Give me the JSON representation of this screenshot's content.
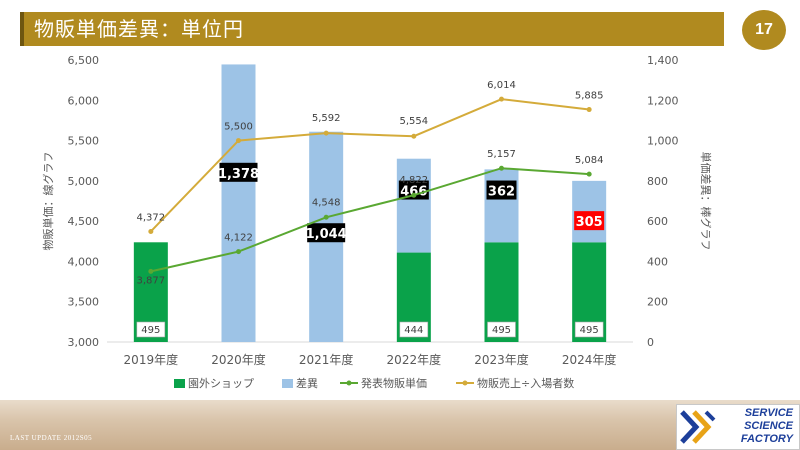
{
  "header": {
    "title": "物販単価差異：単位円",
    "page_number": "17"
  },
  "footer": {
    "update_text": "LAST UPDATE 2012S05",
    "logo_lines": [
      "SERVICE",
      "SCIENCE",
      "FACTORY"
    ]
  },
  "colors": {
    "title_bar": "#b08a1f",
    "green_bar": "#0aa24a",
    "blue_bar": "#9dc3e6",
    "green_line": "#5aa832",
    "gold_line": "#d4ab3a",
    "highlight_red": "#ff0000"
  },
  "chart_data": {
    "type": "bar",
    "categories": [
      "2019年度",
      "2020年度",
      "2021年度",
      "2022年度",
      "2023年度",
      "2024年度"
    ],
    "ylabel": "物販単価：線グラフ",
    "y2label": "単価差異：棒グラフ",
    "ylim": [
      3000,
      6500
    ],
    "y2lim": [
      0,
      1400
    ],
    "yticks": [
      "6,500",
      "6,000",
      "5,500",
      "5,000",
      "4,500",
      "4,000",
      "3,500",
      "3,000"
    ],
    "y2ticks": [
      "1,400",
      "1,200",
      "1,000",
      "800",
      "600",
      "400",
      "200",
      "0"
    ],
    "grid": false,
    "legend_position": "bottom",
    "bar_series": [
      {
        "name": "園外ショップ",
        "axis": "right",
        "values": [
          495,
          null,
          null,
          444,
          495,
          495
        ],
        "labels": [
          "495",
          "",
          "",
          "444",
          "495",
          "495"
        ]
      },
      {
        "name": "差異",
        "axis": "right",
        "values": [
          null,
          1378,
          1044,
          466,
          362,
          305
        ],
        "labels": [
          "",
          "1,378",
          "1,044",
          "466",
          "362",
          "305"
        ]
      }
    ],
    "line_series": [
      {
        "name": "発表物販単価",
        "axis": "left",
        "values": [
          3877,
          4122,
          4548,
          4822,
          5157,
          5084
        ],
        "labels": [
          "3,877",
          "4,122",
          "4,548",
          "4,822",
          "5,157",
          "5,084"
        ]
      },
      {
        "name": "物販売上÷入場者数",
        "axis": "left",
        "values": [
          4372,
          5500,
          5592,
          5554,
          6014,
          5885
        ],
        "labels": [
          "4,372",
          "5,500",
          "5,592",
          "5,554",
          "6,014",
          "5,885"
        ]
      }
    ]
  }
}
